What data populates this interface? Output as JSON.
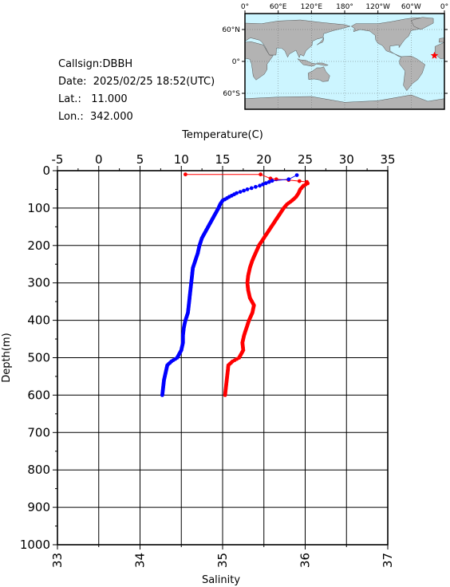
{
  "station": {
    "callsign": "Callsign:DBBH",
    "date": "Date:  2025/02/25 18:52(UTC)",
    "lat": "Lat.:   11.000",
    "lon": "Lon.:  342.000"
  },
  "map": {
    "lon_labels": [
      "0°",
      "60°E",
      "120°E",
      "180°",
      "120°W",
      "60°W",
      "0°"
    ],
    "lat_labels": [
      "60°N",
      "0°",
      "60°S"
    ],
    "station_lon": 342.0,
    "station_lat": 11.0,
    "colors": {
      "ocean": "#ccf5ff",
      "land": "#b3b3b3",
      "marker": "#ff0000"
    }
  },
  "chart_data": {
    "type": "line",
    "xlabel_top": "Temperature(C)",
    "xlabel_bottom": "Salinity",
    "ylabel": "Depth(m)",
    "temperature_range": [
      -5,
      35
    ],
    "salinity_range": [
      33,
      37
    ],
    "depth_range": [
      0,
      1000
    ],
    "temperature_ticks": [
      "-5",
      "0",
      "5",
      "10",
      "15",
      "20",
      "25",
      "30",
      "35"
    ],
    "salinity_ticks": [
      "33",
      "34",
      "35",
      "36",
      "37"
    ],
    "depth_ticks": [
      "0",
      "100",
      "200",
      "300",
      "400",
      "500",
      "600",
      "700",
      "800",
      "900",
      "1000"
    ],
    "series": [
      {
        "name": "Temperature",
        "axis": "temperature",
        "color": "#ff0000",
        "points": [
          [
            10.5,
            10
          ],
          [
            19.6,
            10
          ],
          [
            20.8,
            21
          ],
          [
            21.5,
            23
          ],
          [
            23.0,
            25
          ],
          [
            24.3,
            28
          ],
          [
            25.2,
            30
          ],
          [
            25.3,
            34
          ],
          [
            24.8,
            40
          ],
          [
            24.4,
            50
          ],
          [
            24.2,
            60
          ],
          [
            23.9,
            70
          ],
          [
            23.4,
            80
          ],
          [
            22.8,
            90
          ],
          [
            22.4,
            100
          ],
          [
            21.8,
            120
          ],
          [
            21.2,
            140
          ],
          [
            20.6,
            160
          ],
          [
            20.0,
            180
          ],
          [
            19.4,
            200
          ],
          [
            19.0,
            220
          ],
          [
            18.6,
            240
          ],
          [
            18.3,
            260
          ],
          [
            18.1,
            280
          ],
          [
            18.0,
            300
          ],
          [
            18.1,
            320
          ],
          [
            18.3,
            340
          ],
          [
            18.8,
            360
          ],
          [
            18.6,
            380
          ],
          [
            18.2,
            400
          ],
          [
            17.9,
            420
          ],
          [
            17.6,
            440
          ],
          [
            17.4,
            460
          ],
          [
            17.5,
            480
          ],
          [
            17.0,
            500
          ],
          [
            16.2,
            510
          ],
          [
            15.7,
            520
          ],
          [
            15.6,
            540
          ],
          [
            15.5,
            560
          ],
          [
            15.4,
            580
          ],
          [
            15.3,
            600
          ]
        ]
      },
      {
        "name": "Salinity",
        "axis": "salinity",
        "color": "#0000ff",
        "points": [
          [
            35.9,
            12
          ],
          [
            35.8,
            23
          ],
          [
            35.6,
            27
          ],
          [
            35.45,
            40
          ],
          [
            35.3,
            50
          ],
          [
            35.17,
            60
          ],
          [
            35.08,
            70
          ],
          [
            35.0,
            80
          ],
          [
            34.97,
            90
          ],
          [
            34.95,
            100
          ],
          [
            34.9,
            120
          ],
          [
            34.85,
            140
          ],
          [
            34.8,
            160
          ],
          [
            34.75,
            180
          ],
          [
            34.72,
            200
          ],
          [
            34.7,
            220
          ],
          [
            34.67,
            240
          ],
          [
            34.64,
            260
          ],
          [
            34.63,
            280
          ],
          [
            34.62,
            300
          ],
          [
            34.61,
            320
          ],
          [
            34.6,
            340
          ],
          [
            34.59,
            360
          ],
          [
            34.58,
            380
          ],
          [
            34.55,
            400
          ],
          [
            34.53,
            420
          ],
          [
            34.52,
            440
          ],
          [
            34.52,
            460
          ],
          [
            34.5,
            480
          ],
          [
            34.45,
            500
          ],
          [
            34.38,
            510
          ],
          [
            34.33,
            520
          ],
          [
            34.31,
            540
          ],
          [
            34.29,
            560
          ],
          [
            34.28,
            580
          ],
          [
            34.27,
            600
          ]
        ]
      }
    ],
    "grid": true
  }
}
